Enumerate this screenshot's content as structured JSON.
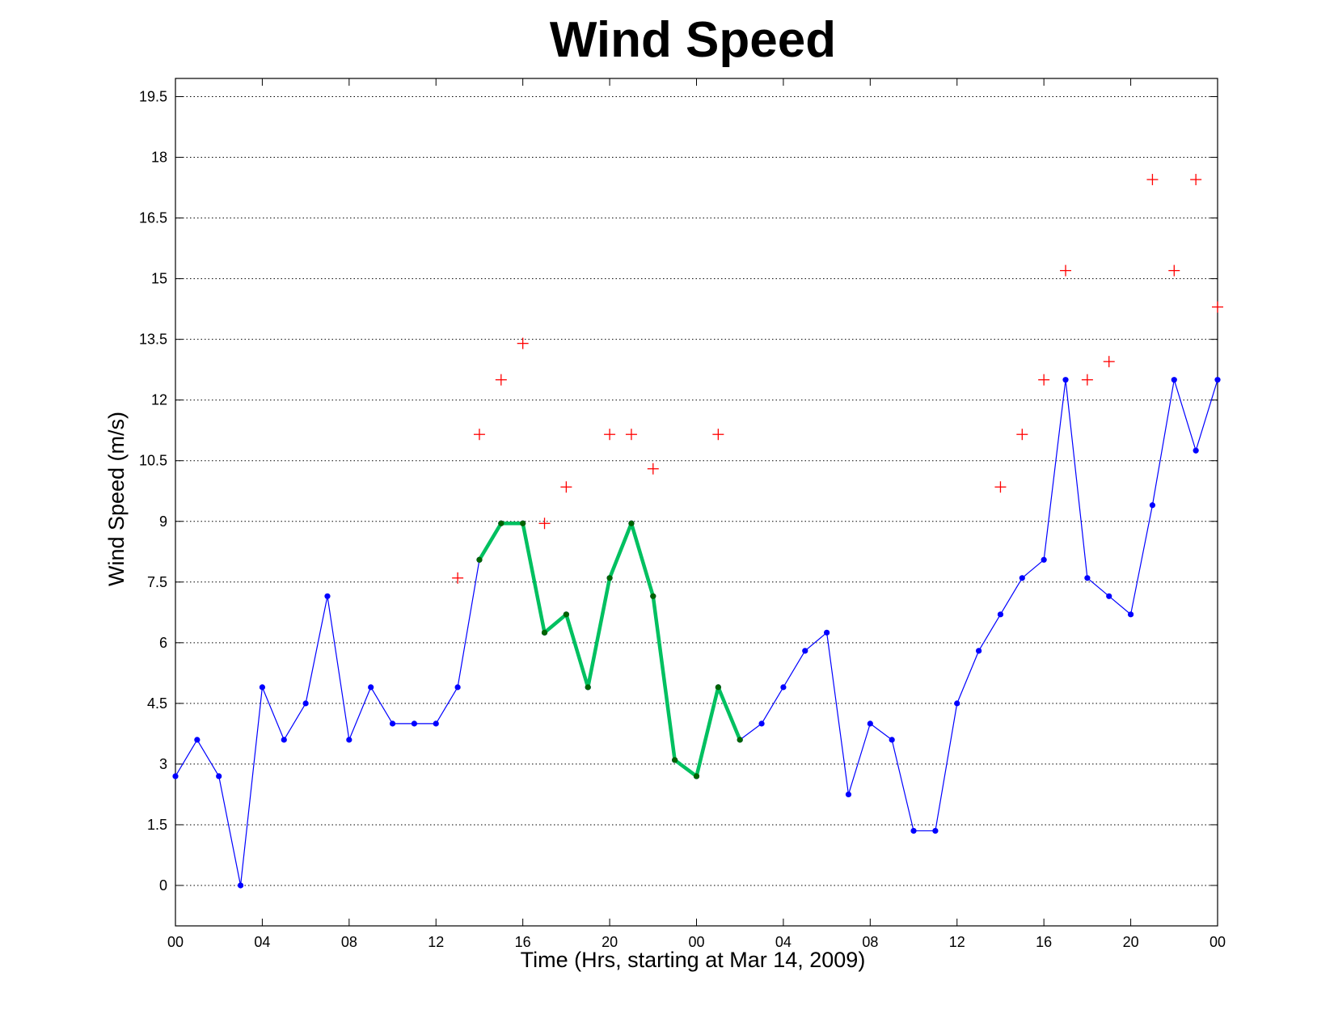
{
  "chart_data": {
    "type": "line",
    "title": "Wind Speed",
    "xlabel": "Time (Hrs, starting at Mar 14, 2009)",
    "ylabel": "Wind Speed (m/s)",
    "xlim": [
      0,
      48
    ],
    "ylim": [
      -1,
      19.95
    ],
    "x_tick_values": [
      0,
      4,
      8,
      12,
      16,
      20,
      24,
      28,
      32,
      36,
      40,
      44,
      48
    ],
    "x_tick_labels": [
      "00",
      "04",
      "08",
      "12",
      "16",
      "20",
      "00",
      "04",
      "08",
      "12",
      "16",
      "20",
      "00"
    ],
    "y_ticks": [
      0,
      1.5,
      3,
      4.5,
      6,
      7.5,
      9,
      10.5,
      12,
      13.5,
      15,
      16.5,
      18,
      19.5
    ],
    "y_tick_labels": [
      "0",
      "1.5",
      "3",
      "4.5",
      "6",
      "7.5",
      "9",
      "10.5",
      "12",
      "13.5",
      "15",
      "16.5",
      "18",
      "19.5"
    ],
    "grid": "horizontal dotted",
    "x": [
      0,
      1,
      2,
      3,
      4,
      5,
      6,
      7,
      8,
      9,
      10,
      11,
      12,
      13,
      14,
      15,
      16,
      17,
      18,
      19,
      20,
      21,
      22,
      23,
      24,
      25,
      26,
      27,
      28,
      29,
      30,
      31,
      32,
      33,
      34,
      35,
      36,
      37,
      38,
      39,
      40,
      41,
      42,
      43,
      44,
      45,
      46,
      47,
      48
    ],
    "series": [
      {
        "style": "line-markers",
        "color": "#0000ff",
        "values": [
          2.7,
          3.6,
          2.7,
          0,
          4.9,
          3.6,
          4.5,
          7.15,
          3.6,
          4.9,
          4.0,
          4.0,
          4.0,
          4.9,
          8.05,
          8.95,
          8.95,
          6.25,
          6.7,
          4.9,
          7.6,
          8.95,
          7.15,
          3.1,
          2.7,
          4.9,
          3.6,
          4.0,
          4.9,
          5.8,
          6.25,
          2.25,
          4.0,
          3.6,
          1.35,
          1.35,
          4.5,
          5.8,
          6.7,
          7.6,
          8.05,
          12.5,
          7.6,
          7.15,
          6.7,
          9.4,
          12.5,
          10.75,
          12.5
        ]
      },
      {
        "style": "thick-line-markers",
        "color": "#00c060",
        "marker_color": "#006400",
        "x": [
          14,
          15,
          16,
          17,
          18,
          19,
          20,
          21,
          22,
          23,
          24,
          25,
          26
        ],
        "values": [
          8.05,
          8.95,
          8.95,
          6.25,
          6.7,
          4.9,
          7.6,
          8.95,
          7.15,
          3.1,
          2.7,
          4.9,
          3.6
        ]
      },
      {
        "style": "plus-markers",
        "color": "#ff0000",
        "x": [
          13,
          14,
          15,
          16,
          17,
          18,
          20,
          21,
          22,
          25,
          38,
          39,
          40,
          41,
          42,
          43,
          45,
          46,
          47,
          48
        ],
        "values": [
          7.6,
          11.15,
          12.5,
          13.4,
          8.95,
          9.85,
          11.15,
          11.15,
          10.3,
          11.15,
          9.85,
          11.15,
          12.5,
          15.2,
          12.5,
          12.95,
          17.45,
          15.2,
          17.45,
          14.3
        ]
      }
    ]
  }
}
